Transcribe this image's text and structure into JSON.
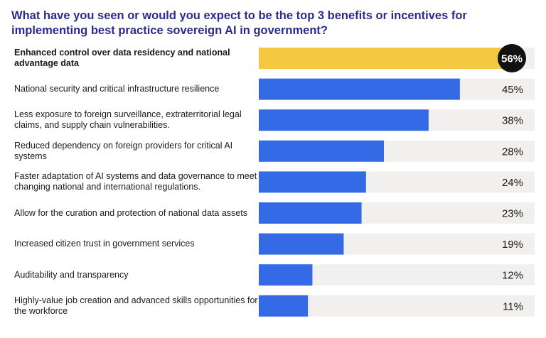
{
  "title": "What have you seen or would you expect to be the top 3 benefits or incentives for implementing best practice sovereign AI in government?",
  "colors": {
    "bar": "#356ae6",
    "highlight_bar": "#f5c842",
    "track": "#f2f0ef",
    "highlight_badge": "#111111",
    "title": "#2b2a8e"
  },
  "chart_data": {
    "type": "bar",
    "orientation": "horizontal",
    "title": "What have you seen or would you expect to be the top 3 benefits or incentives for implementing best practice sovereign AI in government?",
    "categories": [
      "Enhanced control over data residency and national advantage data",
      "National security and critical infrastructure resilience",
      "Less exposure to foreign surveillance, extraterritorial legal claims, and supply chain vulnerabilities.",
      "Reduced dependency on foreign providers for critical AI systems",
      "Faster adaptation of AI systems and data governance to meet changing national and international regulations.",
      "Allow for the curation and protection of national data assets",
      "Increased citizen trust in government services",
      "Auditability and transparency",
      "Highly-value job creation and advanced skills opportunities for the workforce"
    ],
    "values": [
      56,
      45,
      38,
      28,
      24,
      23,
      19,
      12,
      11
    ],
    "value_labels": [
      "56%",
      "45%",
      "38%",
      "28%",
      "24%",
      "23%",
      "19%",
      "12%",
      "11%"
    ],
    "unit": "%",
    "highlight_index": 0,
    "xlim": [
      0,
      56
    ]
  }
}
